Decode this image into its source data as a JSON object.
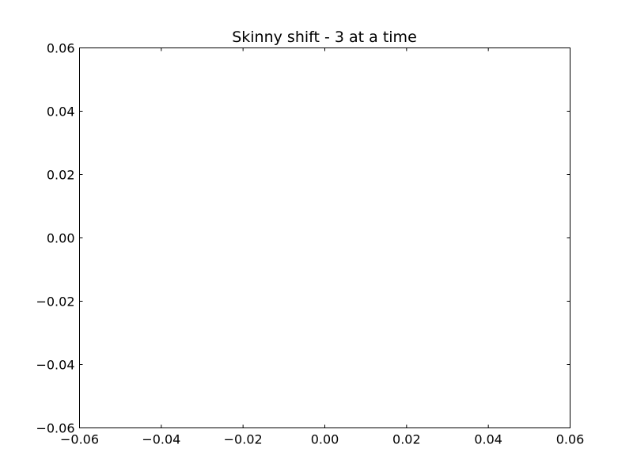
{
  "chart_data": {
    "type": "scatter",
    "title": "Skinny shift - 3 at a time",
    "xlabel": "",
    "ylabel": "",
    "series": [],
    "xlim": [
      -0.06,
      0.06
    ],
    "ylim": [
      -0.06,
      0.06
    ],
    "xticks": [
      -0.06,
      -0.04,
      -0.02,
      0.0,
      0.02,
      0.04,
      0.06
    ],
    "yticks": [
      -0.06,
      -0.04,
      -0.02,
      0.0,
      0.02,
      0.04,
      0.06
    ],
    "xtick_labels": [
      "−0.06",
      "−0.04",
      "−0.02",
      "0.00",
      "0.02",
      "0.04",
      "0.06"
    ],
    "ytick_labels": [
      "−0.06",
      "−0.04",
      "−0.02",
      "0.00",
      "0.02",
      "0.04",
      "0.06"
    ],
    "grid": false,
    "legend": "none",
    "colors": {
      "background": "#ffffff",
      "axes": "#000000",
      "text": "#000000"
    }
  }
}
